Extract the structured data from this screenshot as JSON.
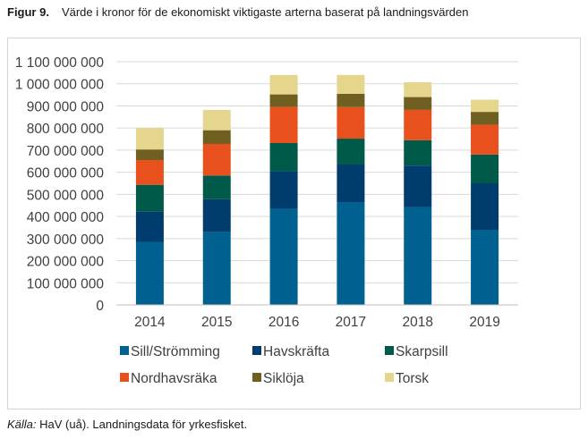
{
  "caption": {
    "label": "Figur 9.",
    "text": "Värde i kronor för de ekonomiskt viktigaste arterna baserat på landningsvärden"
  },
  "source": {
    "label": "Källa:",
    "text": "HaV (uå). Landningsdata för yrkesfisket."
  },
  "chart_data": {
    "type": "bar",
    "stacked": true,
    "title": "",
    "xlabel": "",
    "ylabel": "",
    "ylim": [
      0,
      1100000000
    ],
    "yticks": [
      0,
      100000000,
      200000000,
      300000000,
      400000000,
      500000000,
      600000000,
      700000000,
      800000000,
      900000000,
      1000000000,
      1100000000
    ],
    "ytick_labels": [
      "0",
      "100 000 000",
      "200 000 000",
      "300 000 000",
      "400 000 000",
      "500 000 000",
      "600 000 000",
      "700 000 000",
      "800 000 000",
      "900 000 000",
      "1 000 000 000",
      "1 100 000 000"
    ],
    "grid": true,
    "legend_position": "bottom",
    "categories": [
      "2014",
      "2015",
      "2016",
      "2017",
      "2018",
      "2019"
    ],
    "series": [
      {
        "name": "Sill/Strömming",
        "color": "#006191",
        "values": [
          285000000,
          330000000,
          435000000,
          465000000,
          443000000,
          338000000
        ]
      },
      {
        "name": "Havskräfta",
        "color": "#003d6e",
        "values": [
          137000000,
          148000000,
          170000000,
          170000000,
          187000000,
          212000000
        ]
      },
      {
        "name": "Skarpsill",
        "color": "#005a49",
        "values": [
          121000000,
          107000000,
          127000000,
          117000000,
          115000000,
          130000000
        ]
      },
      {
        "name": "Nordhavsräka",
        "color": "#e8501e",
        "values": [
          112000000,
          143000000,
          164000000,
          143000000,
          137000000,
          135000000
        ]
      },
      {
        "name": "Siklöja",
        "color": "#6f5f21",
        "values": [
          48000000,
          62000000,
          56000000,
          60000000,
          58000000,
          58000000
        ]
      },
      {
        "name": "Torsk",
        "color": "#e6d58c",
        "values": [
          97000000,
          92000000,
          88000000,
          85000000,
          67000000,
          55000000
        ]
      }
    ]
  }
}
